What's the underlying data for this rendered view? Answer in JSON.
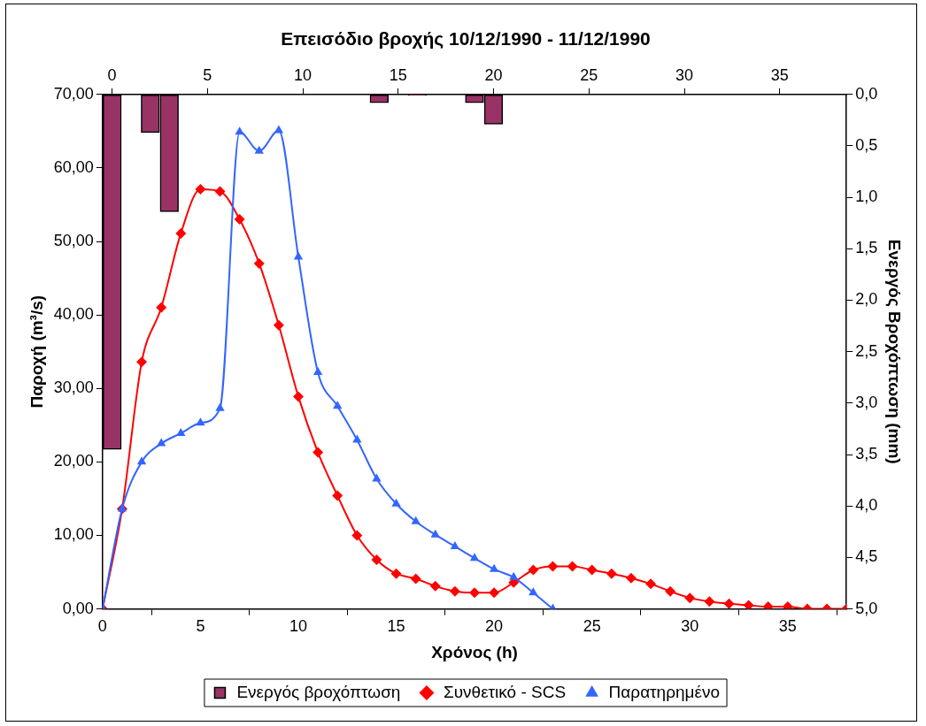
{
  "chart_data": {
    "type": "line",
    "title": "Επεισόδιο βροχής 10/12/1990 - 11/12/1990",
    "xlabel": "Χρόνος (h)",
    "ylabel": "Παροχή (m³/s)",
    "y2label": "Ενεργός Βροχόπτωση (mm)",
    "xlim": [
      0,
      38
    ],
    "xticks": [
      0,
      5,
      10,
      15,
      20,
      25,
      30,
      35
    ],
    "x2lim": [
      -0.5,
      38.5
    ],
    "x2ticks": [
      0,
      5,
      10,
      15,
      20,
      25,
      30,
      35
    ],
    "ylim": [
      0,
      70
    ],
    "yticks": [
      {
        "value": 0,
        "label": "0,00"
      },
      {
        "value": 10,
        "label": "10,00"
      },
      {
        "value": 20,
        "label": "20,00"
      },
      {
        "value": 30,
        "label": "30,00"
      },
      {
        "value": 40,
        "label": "40,00"
      },
      {
        "value": 50,
        "label": "50,00"
      },
      {
        "value": 60,
        "label": "60,00"
      },
      {
        "value": 70,
        "label": "70,00"
      }
    ],
    "y2lim": [
      5,
      0
    ],
    "y2ticks": [
      {
        "value": 0,
        "label": "0,0"
      },
      {
        "value": 0.5,
        "label": "0,5"
      },
      {
        "value": 1,
        "label": "1,0"
      },
      {
        "value": 1.5,
        "label": "1,5"
      },
      {
        "value": 2,
        "label": "2,0"
      },
      {
        "value": 2.5,
        "label": "2,5"
      },
      {
        "value": 3,
        "label": "3,0"
      },
      {
        "value": 3.5,
        "label": "3,5"
      },
      {
        "value": 4,
        "label": "4,0"
      },
      {
        "value": 4.5,
        "label": "4,5"
      },
      {
        "value": 5,
        "label": "5,0"
      }
    ],
    "grid": false,
    "legend": "bottom",
    "series": [
      {
        "name": "Ενεργός βροχόπτωση",
        "type": "bar",
        "axis": "y2",
        "color": "#993366",
        "x": [
          0.49,
          2.44,
          3.41,
          14.13,
          16.08,
          19.0,
          19.97
        ],
        "values": [
          3.45,
          0.37,
          1.14,
          0.08,
          0.01,
          0.08,
          0.29
        ]
      },
      {
        "name": "Συνθετικό - SCS",
        "marker": "diamond",
        "color": "#ff0000",
        "x": [
          0,
          1,
          2,
          3,
          4,
          5,
          6,
          7,
          8,
          9,
          10,
          11,
          12,
          13,
          14,
          15,
          16,
          17,
          18,
          19,
          20,
          21,
          22,
          23,
          24,
          25,
          26,
          27,
          28,
          29,
          30,
          31,
          32,
          33,
          34,
          35,
          36,
          37,
          38
        ],
        "values": [
          0,
          13.6,
          33.6,
          41.0,
          51.1,
          57.1,
          56.8,
          53.0,
          47.0,
          38.6,
          28.9,
          21.3,
          15.4,
          10.0,
          6.7,
          4.8,
          4.1,
          3.1,
          2.4,
          2.2,
          2.2,
          3.6,
          5.3,
          5.8,
          5.8,
          5.3,
          4.8,
          4.2,
          3.4,
          2.4,
          1.5,
          1.0,
          0.7,
          0.5,
          0.3,
          0.3,
          0,
          0,
          0
        ]
      },
      {
        "name": "Παρατηρημένο",
        "marker": "triangle",
        "color": "#3366ff",
        "x": [
          0,
          1,
          2,
          3,
          4,
          5,
          6,
          7,
          8,
          9,
          10,
          11,
          12,
          13,
          14,
          15,
          16,
          17,
          18,
          19,
          20,
          21,
          22,
          23
        ],
        "values": [
          0,
          13.6,
          20.0,
          22.5,
          23.9,
          25.3,
          27.3,
          64.9,
          62.3,
          65.1,
          47.9,
          32.2,
          27.6,
          23.0,
          17.7,
          14.3,
          11.9,
          10.1,
          8.5,
          6.9,
          5.4,
          4.3,
          2.2,
          0
        ]
      }
    ]
  }
}
